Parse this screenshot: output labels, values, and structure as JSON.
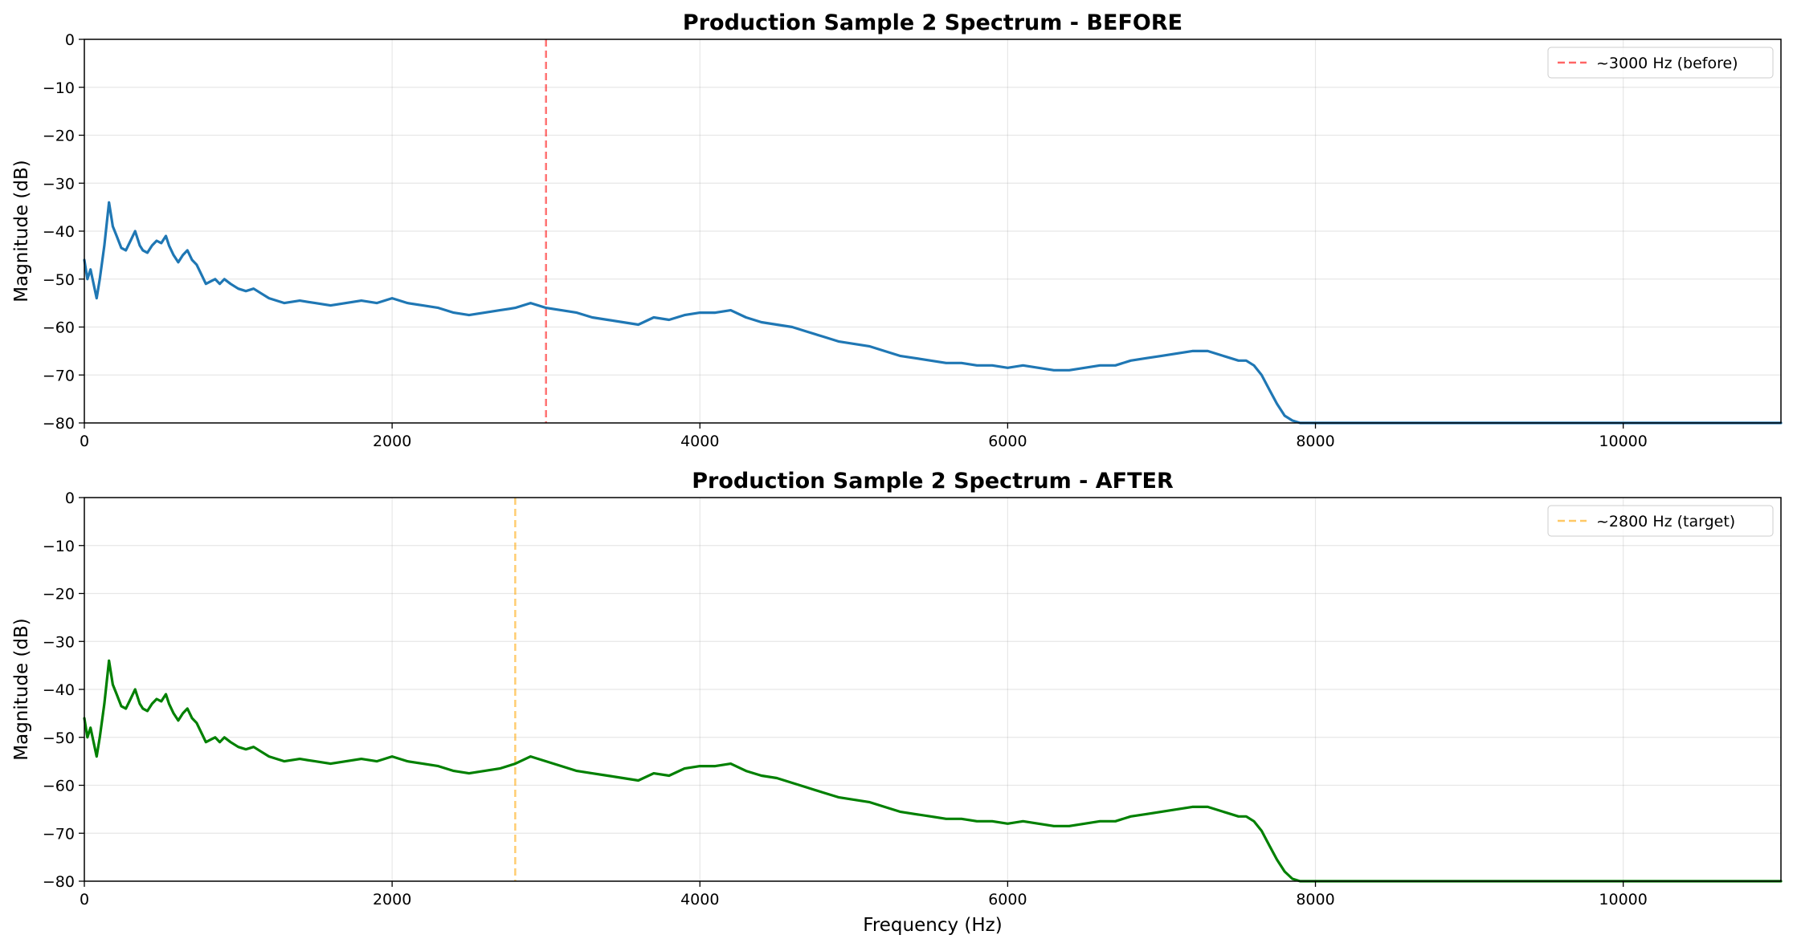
{
  "chart_data": [
    {
      "type": "line",
      "title": "Production Sample 2 Spectrum - BEFORE",
      "xlabel": "",
      "ylabel": "Magnitude (dB)",
      "xlim": [
        0,
        11025
      ],
      "ylim": [
        -80,
        0
      ],
      "xticks": [
        0,
        2000,
        4000,
        6000,
        8000,
        10000
      ],
      "yticks": [
        0,
        -10,
        -20,
        -30,
        -40,
        -50,
        -60,
        -70,
        -80
      ],
      "grid": true,
      "legend_position": "top-right",
      "series": [
        {
          "color": "#1f77b4",
          "x": [
            0,
            20,
            40,
            60,
            80,
            100,
            130,
            160,
            185,
            210,
            240,
            270,
            300,
            330,
            360,
            380,
            410,
            440,
            470,
            500,
            530,
            550,
            580,
            610,
            640,
            670,
            700,
            730,
            760,
            790,
            820,
            850,
            880,
            910,
            950,
            1000,
            1050,
            1100,
            1150,
            1200,
            1300,
            1400,
            1500,
            1600,
            1700,
            1800,
            1900,
            2000,
            2100,
            2200,
            2300,
            2400,
            2500,
            2600,
            2700,
            2800,
            2900,
            3000,
            3100,
            3200,
            3300,
            3400,
            3500,
            3600,
            3700,
            3800,
            3900,
            4000,
            4100,
            4200,
            4300,
            4400,
            4500,
            4600,
            4700,
            4800,
            4900,
            5000,
            5100,
            5200,
            5300,
            5400,
            5500,
            5600,
            5700,
            5800,
            5900,
            6000,
            6100,
            6200,
            6300,
            6400,
            6500,
            6600,
            6700,
            6800,
            6900,
            7000,
            7100,
            7200,
            7300,
            7400,
            7500,
            7550,
            7600,
            7650,
            7700,
            7750,
            7800,
            7850,
            7900,
            8000,
            8500,
            9000,
            9500,
            10000,
            10500,
            11025
          ],
          "y": [
            -46,
            -50,
            -48,
            -51,
            -54,
            -50,
            -43,
            -34,
            -39,
            -41,
            -43.5,
            -44,
            -42,
            -40,
            -43,
            -44,
            -44.5,
            -43,
            -42,
            -42.5,
            -41,
            -43,
            -45,
            -46.5,
            -45,
            -44,
            -46,
            -47,
            -49,
            -51,
            -50.5,
            -50,
            -51,
            -50,
            -51,
            -52,
            -52.5,
            -52,
            -53,
            -54,
            -55,
            -54.5,
            -55,
            -55.5,
            -55,
            -54.5,
            -55,
            -54,
            -55,
            -55.5,
            -56,
            -57,
            -57.5,
            -57,
            -56.5,
            -56,
            -55,
            -56,
            -56.5,
            -57,
            -58,
            -58.5,
            -59,
            -59.5,
            -58,
            -58.5,
            -57.5,
            -57,
            -57,
            -56.5,
            -58,
            -59,
            -59.5,
            -60,
            -61,
            -62,
            -63,
            -63.5,
            -64,
            -65,
            -66,
            -66.5,
            -67,
            -67.5,
            -67.5,
            -68,
            -68,
            -68.5,
            -68,
            -68.5,
            -69,
            -69,
            -68.5,
            -68,
            -68,
            -67,
            -66.5,
            -66,
            -65.5,
            -65,
            -65,
            -66,
            -67,
            -67,
            -68,
            -70,
            -73,
            -76,
            -78.5,
            -79.5,
            -80,
            -80,
            -80,
            -80,
            -80,
            -80,
            -80,
            -80
          ]
        }
      ],
      "reference_line": {
        "x": 3000,
        "label": "~3000 Hz (before)",
        "color": "#ff0000"
      }
    },
    {
      "type": "line",
      "title": "Production Sample 2 Spectrum - AFTER",
      "xlabel": "Frequency (Hz)",
      "ylabel": "Magnitude (dB)",
      "xlim": [
        0,
        11025
      ],
      "ylim": [
        -80,
        0
      ],
      "xticks": [
        0,
        2000,
        4000,
        6000,
        8000,
        10000
      ],
      "yticks": [
        0,
        -10,
        -20,
        -30,
        -40,
        -50,
        -60,
        -70,
        -80
      ],
      "grid": true,
      "legend_position": "top-right",
      "series": [
        {
          "color": "#008000",
          "x": [
            0,
            20,
            40,
            60,
            80,
            100,
            130,
            160,
            185,
            210,
            240,
            270,
            300,
            330,
            360,
            380,
            410,
            440,
            470,
            500,
            530,
            550,
            580,
            610,
            640,
            670,
            700,
            730,
            760,
            790,
            820,
            850,
            880,
            910,
            950,
            1000,
            1050,
            1100,
            1150,
            1200,
            1300,
            1400,
            1500,
            1600,
            1700,
            1800,
            1900,
            2000,
            2100,
            2200,
            2300,
            2400,
            2500,
            2600,
            2700,
            2800,
            2900,
            3000,
            3100,
            3200,
            3300,
            3400,
            3500,
            3600,
            3700,
            3800,
            3900,
            4000,
            4100,
            4200,
            4300,
            4400,
            4500,
            4600,
            4700,
            4800,
            4900,
            5000,
            5100,
            5200,
            5300,
            5400,
            5500,
            5600,
            5700,
            5800,
            5900,
            6000,
            6100,
            6200,
            6300,
            6400,
            6500,
            6600,
            6700,
            6800,
            6900,
            7000,
            7100,
            7200,
            7300,
            7400,
            7500,
            7550,
            7600,
            7650,
            7700,
            7750,
            7800,
            7850,
            7900,
            8000,
            8500,
            9000,
            9500,
            10000,
            10500,
            11025
          ],
          "y": [
            -46,
            -50,
            -48,
            -51,
            -54,
            -50,
            -43,
            -34,
            -39,
            -41,
            -43.5,
            -44,
            -42,
            -40,
            -43,
            -44,
            -44.5,
            -43,
            -42,
            -42.5,
            -41,
            -43,
            -45,
            -46.5,
            -45,
            -44,
            -46,
            -47,
            -49,
            -51,
            -50.5,
            -50,
            -51,
            -50,
            -51,
            -52,
            -52.5,
            -52,
            -53,
            -54,
            -55,
            -54.5,
            -55,
            -55.5,
            -55,
            -54.5,
            -55,
            -54,
            -55,
            -55.5,
            -56,
            -57,
            -57.5,
            -57,
            -56.5,
            -55.5,
            -54,
            -55,
            -56,
            -57,
            -57.5,
            -58,
            -58.5,
            -59,
            -57.5,
            -58,
            -56.5,
            -56,
            -56,
            -55.5,
            -57,
            -58,
            -58.5,
            -59.5,
            -60.5,
            -61.5,
            -62.5,
            -63,
            -63.5,
            -64.5,
            -65.5,
            -66,
            -66.5,
            -67,
            -67,
            -67.5,
            -67.5,
            -68,
            -67.5,
            -68,
            -68.5,
            -68.5,
            -68,
            -67.5,
            -67.5,
            -66.5,
            -66,
            -65.5,
            -65,
            -64.5,
            -64.5,
            -65.5,
            -66.5,
            -66.5,
            -67.5,
            -69.5,
            -72.5,
            -75.5,
            -78,
            -79.5,
            -80,
            -80,
            -80,
            -80,
            -80,
            -80,
            -80,
            -80
          ]
        }
      ],
      "reference_line": {
        "x": 2800,
        "label": "~2800 Hz (target)",
        "color": "#ffa500"
      }
    }
  ]
}
